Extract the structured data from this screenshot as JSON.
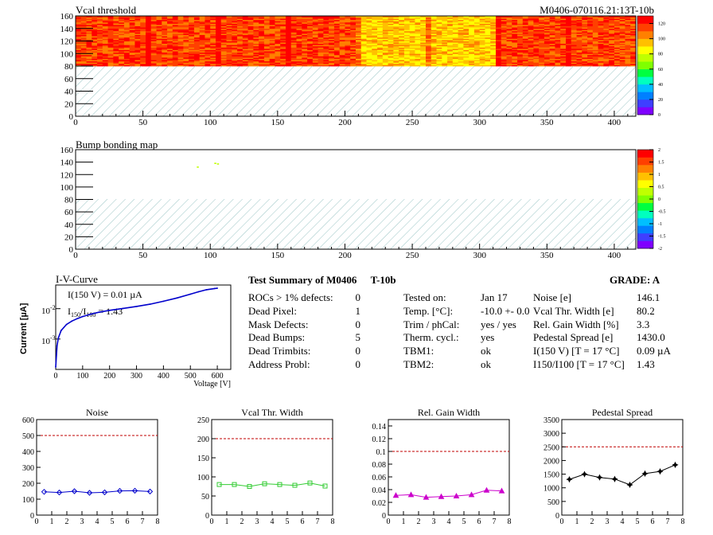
{
  "colors": {
    "palette": [
      "#7f00ff",
      "#3f3fff",
      "#0080ff",
      "#00bfff",
      "#00ffbf",
      "#00ff40",
      "#80ff00",
      "#c0ff00",
      "#ffff00",
      "#ffc000",
      "#ff8000",
      "#ff4000",
      "#ff0000"
    ],
    "hatch": "#9cc6c6",
    "ref_line": "#c00000",
    "noise_series": "#0000cc",
    "vcal_series": "#33cc33",
    "gain_series": "#cc00cc",
    "ped_series": "#000000",
    "iv_curve": "#0000cc"
  },
  "vcal": {
    "title": "Vcal threshold",
    "module_id": "M0406-070116.21:13T-10b",
    "y_ticks": [
      "0",
      "20",
      "40",
      "60",
      "80",
      "100",
      "120",
      "140",
      "160"
    ],
    "x_ticks": [
      "0",
      "50",
      "100",
      "150",
      "200",
      "250",
      "300",
      "350",
      "400"
    ],
    "z_ticks": [
      "0",
      "20",
      "40",
      "60",
      "80",
      "100",
      "120"
    ]
  },
  "bump": {
    "title": "Bump bonding map",
    "y_ticks": [
      "0",
      "20",
      "40",
      "60",
      "80",
      "100",
      "120",
      "140",
      "160"
    ],
    "x_ticks": [
      "0",
      "50",
      "100",
      "150",
      "200",
      "250",
      "300",
      "350",
      "400"
    ],
    "z_ticks": [
      "-2",
      "-1.5",
      "-1",
      "-0.5",
      "0",
      "0.5",
      "1",
      "1.5",
      "2"
    ]
  },
  "iv": {
    "title": "I-V-Curve",
    "ylabel": "Current [µA]",
    "xlabel": "Voltage [V]",
    "annotation1": "I(150 V) = 0.01 µA",
    "annotation2_main": "I",
    "annotation2_sub1": "150",
    "annotation2_slash": "/I",
    "annotation2_sub2": "100",
    "annotation2_rest": " = 1.43",
    "y_tick_main": "10",
    "y_tick_exp1": "-2",
    "y_tick_exp2": "-3",
    "x_ticks": [
      "0",
      "100",
      "200",
      "300",
      "400",
      "500",
      "600"
    ]
  },
  "summary": {
    "title": "Test Summary of M0406",
    "suffix": "T-10b",
    "grade": "GRADE:  A",
    "rows_left": [
      {
        "label": "ROCs > 1% defects:",
        "value": "0"
      },
      {
        "label": "Dead Pixel:",
        "value": "1"
      },
      {
        "label": "Mask Defects:",
        "value": "0"
      },
      {
        "label": "Dead Bumps:",
        "value": "5"
      },
      {
        "label": "Dead Trimbits:",
        "value": "0"
      },
      {
        "label": "Address Probl:",
        "value": "0"
      }
    ],
    "rows_mid": [
      {
        "label": "Tested on:",
        "value": "Jan 17"
      },
      {
        "label": "Temp. [°C]:",
        "value": "-10.0 +- 0.0"
      },
      {
        "label": "Trim / phCal:",
        "value": "yes / yes"
      },
      {
        "label": "Therm. cycl.:",
        "value": "yes"
      },
      {
        "label": "TBM1:",
        "value": "ok"
      },
      {
        "label": "TBM2:",
        "value": "ok"
      }
    ],
    "rows_right": [
      {
        "label": "Noise [e]",
        "value": "146.1"
      },
      {
        "label": "Vcal Thr. Width [e]",
        "value": "80.2"
      },
      {
        "label": "Rel. Gain Width [%]",
        "value": "3.3"
      },
      {
        "label": "Pedestal Spread [e]",
        "value": "1430.0"
      },
      {
        "label": "I(150 V) [T = 17 °C]",
        "value": "0.09 µA"
      },
      {
        "label": "I150/I100  [T = 17 °C]",
        "value": "1.43"
      }
    ]
  },
  "chart_data": [
    {
      "type": "heatmap",
      "title": "Vcal threshold",
      "xlim": [
        0,
        416
      ],
      "ylim": [
        0,
        160
      ],
      "zlim": [
        0,
        130
      ],
      "active_rows": [
        80,
        160
      ],
      "inactive_rows": [
        0,
        80
      ],
      "typical_value": 115,
      "low_columns": [
        [
          208,
          260
        ],
        [
          260,
          312
        ]
      ],
      "hot_column_edges": [
        52,
        104,
        156,
        208,
        260,
        312,
        364
      ]
    },
    {
      "type": "heatmap",
      "title": "Bump bonding map",
      "xlim": [
        0,
        416
      ],
      "ylim": [
        0,
        160
      ],
      "zlim": [
        -2,
        2
      ],
      "active_rows": [
        80,
        160
      ],
      "inactive_rows": [
        0,
        80
      ],
      "points": [
        {
          "x": 90,
          "y": 133,
          "z": 0.3
        },
        {
          "x": 103,
          "y": 139,
          "z": 0.3
        },
        {
          "x": 105,
          "y": 138,
          "z": 0.3
        }
      ]
    },
    {
      "type": "line",
      "title": "I-V-Curve",
      "xlabel": "Voltage [V]",
      "ylabel": "Current [µA]",
      "xlim": [
        0,
        650
      ],
      "ylog": true,
      "ylim": [
        0.0001,
        0.06
      ],
      "x": [
        0,
        5,
        10,
        20,
        40,
        60,
        80,
        100,
        130,
        160,
        200,
        250,
        300,
        350,
        400,
        450,
        500,
        530,
        560,
        590,
        600
      ],
      "y": [
        0.00012,
        0.0006,
        0.0011,
        0.0019,
        0.003,
        0.0039,
        0.0047,
        0.0055,
        0.0066,
        0.0076,
        0.0088,
        0.0102,
        0.0118,
        0.014,
        0.0175,
        0.0225,
        0.03,
        0.036,
        0.042,
        0.046,
        0.047
      ]
    },
    {
      "type": "line",
      "title": "Noise",
      "x": [
        0.5,
        1.5,
        2.5,
        3.5,
        4.5,
        5.5,
        6.5,
        7.5
      ],
      "values": [
        146,
        142,
        150,
        140,
        143,
        152,
        153,
        148
      ],
      "xlim": [
        0,
        8
      ],
      "ylim": [
        0,
        600
      ],
      "y_ticks": [
        "0",
        "100",
        "200",
        "300",
        "400",
        "500",
        "600"
      ],
      "x_ticks": [
        "0",
        "1",
        "2",
        "3",
        "4",
        "5",
        "6",
        "7",
        "8"
      ],
      "reference": 500,
      "marker": "diamond"
    },
    {
      "type": "line",
      "title": "Vcal Thr. Width",
      "x": [
        0.5,
        1.5,
        2.5,
        3.5,
        4.5,
        5.5,
        6.5,
        7.5
      ],
      "values": [
        80,
        80,
        75,
        82,
        80,
        78,
        84,
        76
      ],
      "xlim": [
        0,
        8
      ],
      "ylim": [
        0,
        250
      ],
      "y_ticks": [
        "0",
        "50",
        "100",
        "150",
        "200",
        "250"
      ],
      "x_ticks": [
        "0",
        "1",
        "2",
        "3",
        "4",
        "5",
        "6",
        "7",
        "8"
      ],
      "reference": 200,
      "marker": "square"
    },
    {
      "type": "line",
      "title": "Rel. Gain Width",
      "x": [
        0.5,
        1.5,
        2.5,
        3.5,
        4.5,
        5.5,
        6.5,
        7.5
      ],
      "values": [
        0.031,
        0.032,
        0.028,
        0.029,
        0.03,
        0.032,
        0.039,
        0.038
      ],
      "xlim": [
        0,
        8
      ],
      "ylim": [
        0,
        0.15
      ],
      "y_ticks": [
        "0",
        "0.02",
        "0.04",
        "0.06",
        "0.08",
        "0.1",
        "0.12",
        "0.14"
      ],
      "x_ticks": [
        "0",
        "1",
        "2",
        "3",
        "4",
        "5",
        "6",
        "7",
        "8"
      ],
      "reference": 0.1,
      "marker": "triangle"
    },
    {
      "type": "line",
      "title": "Pedestal Spread",
      "x": [
        0.5,
        1.5,
        2.5,
        3.5,
        4.5,
        5.5,
        6.5,
        7.5
      ],
      "values": [
        1310,
        1500,
        1380,
        1320,
        1110,
        1520,
        1600,
        1840
      ],
      "xlim": [
        0,
        8
      ],
      "ylim": [
        0,
        3500
      ],
      "y_ticks": [
        "0",
        "500",
        "1000",
        "1500",
        "2000",
        "2500",
        "3000",
        "3500"
      ],
      "x_ticks": [
        "0",
        "1",
        "2",
        "3",
        "4",
        "5",
        "6",
        "7",
        "8"
      ],
      "reference": 2500,
      "marker": "star"
    }
  ]
}
